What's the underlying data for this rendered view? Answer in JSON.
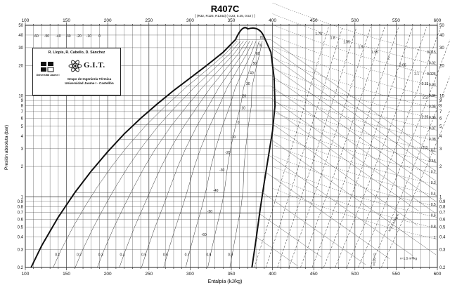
{
  "chart_data": {
    "type": "line",
    "title": "R407C",
    "subtitle": "[ (R32, R125, R134a) ( 0.23, 0.25, 0.52 ) ]",
    "xlabel": "Entalpía (kJ/kg)",
    "ylabel": "Presión absoluta (bar)",
    "xlim": [
      100,
      600
    ],
    "ylim": [
      0.2,
      50
    ],
    "yscale": "log",
    "x_ticks_major": [
      "100",
      "150",
      "200",
      "250",
      "300",
      "350",
      "400",
      "450",
      "500",
      "550",
      "600"
    ],
    "y_ticks": [
      "0.2",
      "0.3",
      "0.4",
      "0.5",
      "0.6",
      "0.7",
      "0.8",
      "0.9",
      "1",
      "2",
      "3",
      "4",
      "5",
      "6",
      "7",
      "8",
      "9",
      "10",
      "20",
      "30",
      "40",
      "50"
    ],
    "saturation_liquid": {
      "h": [
        107,
        120,
        140,
        160,
        180,
        200,
        220,
        240,
        260,
        280,
        300,
        320,
        340,
        355
      ],
      "p": [
        0.2,
        0.33,
        0.63,
        1.1,
        1.8,
        2.8,
        4.2,
        6.0,
        8.3,
        11.3,
        15.0,
        20.0,
        27.0,
        36.0
      ]
    },
    "saturation_vapor": {
      "h": [
        375,
        380,
        385,
        390,
        395,
        400,
        403,
        402,
        398,
        390
      ],
      "p": [
        0.2,
        0.38,
        0.75,
        1.4,
        2.5,
        4.5,
        8.0,
        15.0,
        27.0,
        38.0
      ]
    },
    "critical_point": {
      "h": 370,
      "p": 46
    },
    "isotherms_C": [
      "80",
      "70",
      "60",
      "50",
      "40",
      "30",
      "20",
      "10",
      "0",
      "-10",
      "-20",
      "-30",
      "-40",
      "-50",
      "-60"
    ],
    "top_temperature_labels": [
      "-60",
      "-50",
      "-40",
      "-30",
      "-20",
      "-10",
      "0"
    ],
    "quality_labels": [
      "0.1",
      "0.2",
      "0.3",
      "0.4",
      "0.5",
      "0.6",
      "0.7",
      "0.8",
      "0.9"
    ],
    "entropy_labels": [
      "1.75",
      "1.8",
      "1.85",
      "1.9",
      "1.95",
      "2",
      "2.05",
      "2.1",
      "2.15",
      "2.2",
      "2.25",
      "2.3"
    ],
    "volume_labels": [
      "0.015",
      "0.02",
      "0.025",
      "0.03",
      "0.04",
      "0.05",
      "0.06",
      "0.07",
      "0.08",
      "0.1",
      "0.15",
      "0.2",
      "0.3",
      "0.4",
      "0.5",
      "0.6",
      "0.8",
      "1"
    ],
    "annotations": {
      "entropy_curve": "s=2.3 kJ/kg·K",
      "volume_curve": "v=1.5 m³/kg",
      "isotherm_label": "t=120 °C"
    },
    "grid": true,
    "legend": "none"
  },
  "logo": {
    "authors": "R. Llopis, R. Cabello, D. Sánchez",
    "university_mark": "Universitat Jaume I",
    "brand": "G.I.T.",
    "group_line1": "Grupo de Ingeniería Térmica",
    "group_line2": "Universidad Jaume I - Castellón"
  },
  "colors": {
    "line": "#111111",
    "grid": "#444444",
    "background": "#ffffff"
  }
}
